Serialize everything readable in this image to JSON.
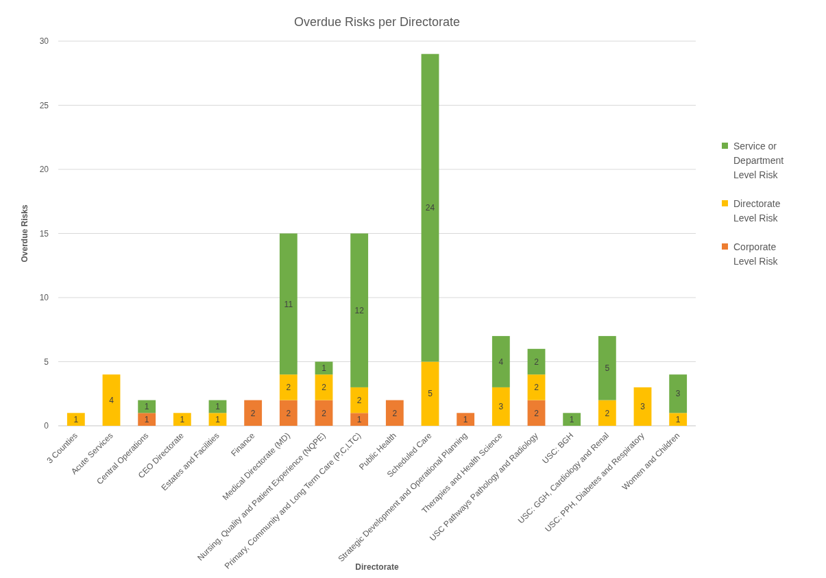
{
  "chart_data": {
    "type": "bar",
    "title": "Overdue Risks per Directorate",
    "xlabel": "Directorate",
    "ylabel": "Overdue Risks",
    "categories": [
      "3 Counties",
      "Acute Services",
      "Central Operations",
      "CEO Directorate",
      "Estates and Facilities",
      "Finance",
      "Medical Directorate (MD)",
      "Nursing, Quality and Patient Experience (NQPE)",
      "Primary, Community and Long Term Care (P,C,LTC)",
      "Public Health",
      "Scheduled Care",
      "Strategic Development and Operational Planning",
      "Therapies and Health Science",
      "USC Pathways Pathology and Radiology",
      "USC: BGH",
      "USC: GGH, Cardiology and Renal",
      "USC: PPH, Diabetes and Respiratory",
      "Women and Children"
    ],
    "stacked": true,
    "series": [
      {
        "name": "Corporate Level Risk",
        "color": "#ed7d31",
        "values": [
          null,
          null,
          1,
          null,
          null,
          2,
          2,
          2,
          1,
          2,
          null,
          1,
          null,
          2,
          null,
          null,
          null,
          null
        ]
      },
      {
        "name": "Directorate Level Risk",
        "color": "#ffc000",
        "values": [
          1,
          4,
          null,
          1,
          1,
          null,
          2,
          2,
          2,
          null,
          5,
          null,
          3,
          2,
          null,
          2,
          3,
          1
        ]
      },
      {
        "name": "Service or Department Level Risk",
        "color": "#70ad47",
        "values": [
          null,
          null,
          1,
          null,
          1,
          null,
          11,
          1,
          12,
          null,
          24,
          null,
          4,
          2,
          1,
          5,
          null,
          3
        ]
      }
    ],
    "ylim": [
      0,
      30
    ],
    "yticks": [
      0,
      5,
      10,
      15,
      20,
      25,
      30
    ],
    "grid": "y",
    "legend": "right",
    "data_labels": true
  }
}
